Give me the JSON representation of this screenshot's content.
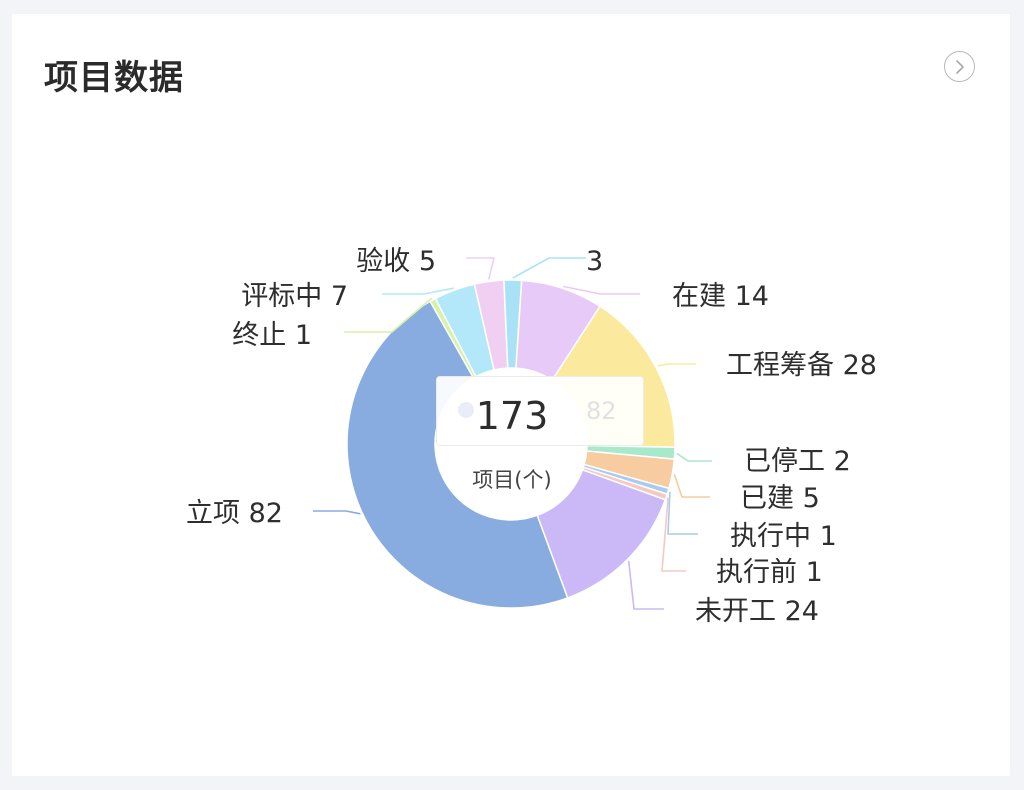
{
  "card": {
    "title": "项目数据",
    "more_icon": "chevron-right-circle-icon"
  },
  "center": {
    "total": "173",
    "unit": "项目(个)"
  },
  "tooltip": {
    "value": "82"
  },
  "chart_data": {
    "type": "pie",
    "variant": "donut",
    "total": 173,
    "slices": [
      {
        "name": "",
        "value": 3,
        "label": "3",
        "color": "#a9e2f6"
      },
      {
        "name": "在建",
        "value": 14,
        "label": "在建 14",
        "color": "#e8caf9"
      },
      {
        "name": "工程筹备",
        "value": 28,
        "label": "工程筹备 28",
        "color": "#fbea9e"
      },
      {
        "name": "已停工",
        "value": 2,
        "label": "已停工 2",
        "color": "#a8e9cb"
      },
      {
        "name": "已建",
        "value": 5,
        "label": "已建 5",
        "color": "#f6cca0"
      },
      {
        "name": "执行中",
        "value": 1,
        "label": "执行中 1",
        "color": "#a9cbef"
      },
      {
        "name": "执行前",
        "value": 1,
        "label": "执行前 1",
        "color": "#f6c8c2"
      },
      {
        "name": "未开工",
        "value": 24,
        "label": "未开工 24",
        "color": "#cbb8f7"
      },
      {
        "name": "立项",
        "value": 82,
        "label": "立项 82",
        "color": "#88abe0"
      },
      {
        "name": "终止",
        "value": 1,
        "label": "终止 1",
        "color": "#d6f2a8"
      },
      {
        "name": "评标中",
        "value": 7,
        "label": "评标中 7",
        "color": "#b3e8fa"
      },
      {
        "name": "验收",
        "value": 5,
        "label": "验收 5",
        "color": "#f0cff3"
      }
    ]
  }
}
